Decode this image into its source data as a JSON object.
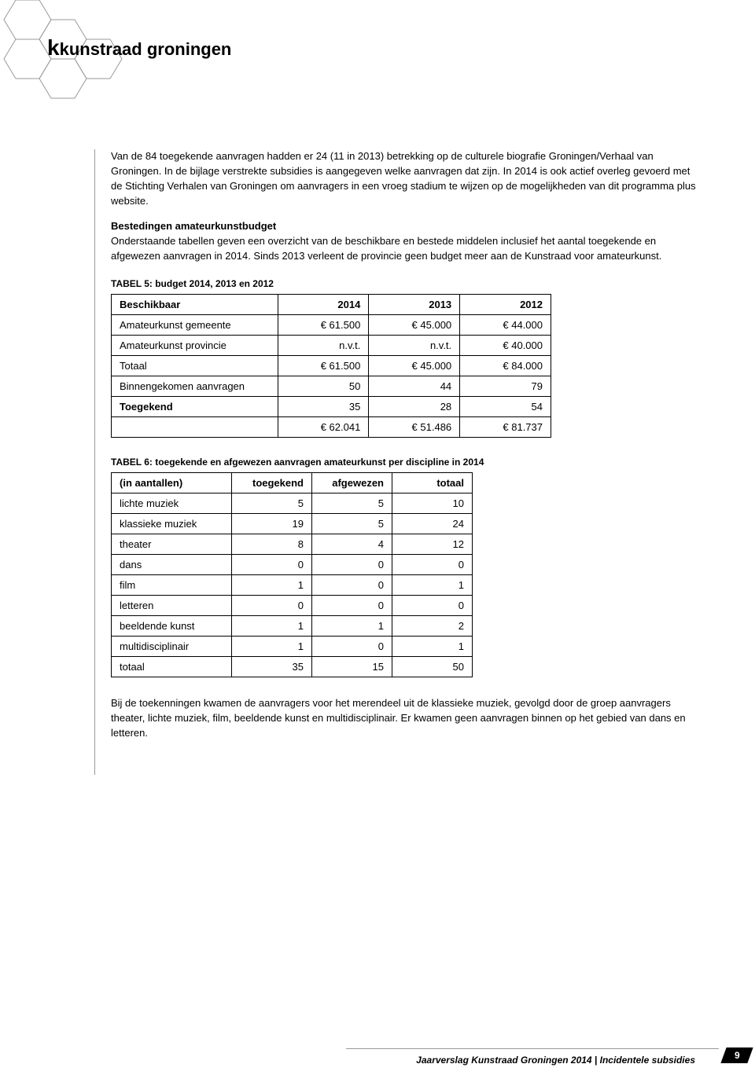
{
  "logo": {
    "text": "kunstraad groningen"
  },
  "paragraphs": {
    "p1": "Van de 84 toegekende aanvragen hadden er 24 (11 in 2013) betrekking op de culturele biografie Groningen/Verhaal van Groningen. In de bijlage verstrekte subsidies is aangegeven welke aanvragen dat zijn. In 2014 is ook actief overleg gevoerd met de Stichting Verhalen van Groningen om aanvragers in een vroeg stadium te wijzen op de mogelijkheden van dit programma plus website.",
    "p2_heading": "Bestedingen amateurkunstbudget",
    "p2": "Onderstaande tabellen geven een overzicht van de beschikbare en bestede middelen inclusief het aantal toegekende en afgewezen aanvragen in 2014. Sinds 2013 verleent de provincie geen budget meer aan de Kunstraad voor amateurkunst.",
    "p3": "Bij de toekenningen kwamen de aanvragers voor het merendeel uit de klassieke muziek, gevolgd door de groep aanvragers theater, lichte muziek, film, beeldende kunst en multidisciplinair. Er kwamen geen aanvragen binnen op het gebied van dans en letteren."
  },
  "table5": {
    "caption": "TABEL 5: budget 2014, 2013 en 2012",
    "columns": [
      "Beschikbaar",
      "2014",
      "2013",
      "2012"
    ],
    "rows": [
      [
        "Amateurkunst gemeente",
        "€ 61.500",
        "€ 45.000",
        "€ 44.000"
      ],
      [
        "Amateurkunst provincie",
        "n.v.t.",
        "n.v.t.",
        "€ 40.000"
      ],
      [
        "Totaal",
        "€ 61.500",
        "€ 45.000",
        "€ 84.000"
      ],
      [
        "Binnengekomen aanvragen",
        "50",
        "44",
        "79"
      ],
      [
        "Toegekend",
        "35",
        "28",
        "54"
      ],
      [
        "",
        "€ 62.041",
        "€ 51.486",
        "€ 81.737"
      ]
    ],
    "bold_rows": [
      4
    ]
  },
  "table6": {
    "caption": "TABEL 6: toegekende en afgewezen aanvragen amateurkunst per discipline in 2014",
    "columns": [
      "(in aantallen)",
      "toegekend",
      "afgewezen",
      "totaal"
    ],
    "rows": [
      [
        "lichte muziek",
        "5",
        "5",
        "10"
      ],
      [
        "klassieke muziek",
        "19",
        "5",
        "24"
      ],
      [
        "theater",
        "8",
        "4",
        "12"
      ],
      [
        "dans",
        "0",
        "0",
        "0"
      ],
      [
        "film",
        "1",
        "0",
        "1"
      ],
      [
        "letteren",
        "0",
        "0",
        "0"
      ],
      [
        "beeldende kunst",
        "1",
        "1",
        "2"
      ],
      [
        "multidisciplinair",
        "1",
        "0",
        "1"
      ],
      [
        "totaal",
        "35",
        "15",
        "50"
      ]
    ]
  },
  "footer": {
    "text": "Jaarverslag Kunstraad Groningen 2014 | Incidentele subsidies",
    "page": "9"
  }
}
